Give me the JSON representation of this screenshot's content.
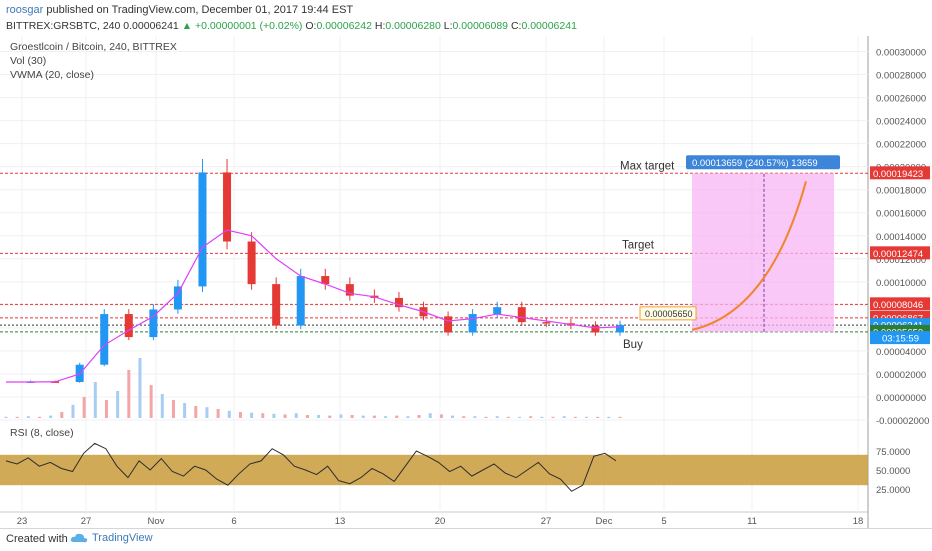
{
  "header": {
    "author": "roosgar",
    "published": "published on TradingView.com, December 01, 2017 19:44 EST",
    "symbol": "BITTREX:GRSBTC, 240",
    "last": "0.00006241",
    "change": "▲ +0.00000001 (+0.02%)",
    "o_label": "O:",
    "o": "0.00006242",
    "h_label": "H:",
    "h": "0.00006280",
    "l_label": "L:",
    "l": "0.00006089",
    "c_label": "C:",
    "c": "0.00006241"
  },
  "legend": {
    "title": "Groestlcoin / Bitcoin, 240, BITTREX",
    "vol": "Vol (30)",
    "vwma": "VWMA (20, close)",
    "rsi": "RSI (8, close)"
  },
  "footer": {
    "created": "Created with",
    "brand": "TradingView"
  },
  "colors": {
    "up": "#2196f3",
    "down": "#e53935",
    "vwma": "#e040fb",
    "rsi_band": "#c99b3a",
    "level": "#e53935",
    "target_box": "#f7b6f3",
    "curve": "#f0852d"
  },
  "chart_data": [
    {
      "type": "line",
      "name": "price",
      "y_axis_ticks": [
        "0.00030000",
        "0.00028000",
        "0.00026000",
        "0.00024000",
        "0.00022000",
        "0.00020000",
        "0.00018000",
        "0.00016000",
        "0.00014000",
        "0.00012000",
        "0.00010000",
        "0.00008000",
        "0.00006000",
        "0.00004000",
        "0.00002000",
        "0.00000000",
        "-0.00002000"
      ],
      "ylim": [
        -2e-05,
        0.00031
      ],
      "x_ticks": [
        "23",
        "27",
        "Nov",
        "6",
        "13",
        "20",
        "27",
        "Dec",
        "5",
        "11",
        "18"
      ],
      "x": [
        "Oct 21",
        "Oct 23",
        "Oct 25",
        "Oct 27",
        "Oct 28",
        "Oct 29",
        "Oct 30",
        "Oct 31",
        "Nov 1",
        "Nov 2",
        "Nov 3",
        "Nov 4",
        "Nov 5",
        "Nov 7",
        "Nov 9",
        "Nov 11",
        "Nov 13",
        "Nov 15",
        "Nov 17",
        "Nov 19",
        "Nov 21",
        "Nov 23",
        "Nov 25",
        "Nov 27",
        "Nov 29",
        "Dec 1"
      ],
      "close": [
        1.3e-05,
        1.35e-05,
        1.3e-05,
        2.8e-05,
        7.2e-05,
        5.2e-05,
        7.6e-05,
        9.6e-05,
        0.000195,
        0.000135,
        9.8e-05,
        6.2e-05,
        0.000105,
        9.8e-05,
        8.8e-05,
        8.6e-05,
        7.8e-05,
        7e-05,
        5.6e-05,
        7.2e-05,
        7.8e-05,
        6.5e-05,
        6.4e-05,
        6.2e-05,
        5.6e-05,
        6.24e-05
      ],
      "vwma": [
        1.3e-05,
        1.3e-05,
        1.32e-05,
        2e-05,
        4.5e-05,
        5.8e-05,
        7e-05,
        9e-05,
        0.00013,
        0.000145,
        0.00014,
        0.00012,
        0.000105,
        9.8e-05,
        9e-05,
        8.7e-05,
        8e-05,
        7.4e-05,
        6.6e-05,
        6.8e-05,
        7.2e-05,
        6.9e-05,
        6.6e-05,
        6.3e-05,
        6e-05,
        6.1e-05
      ],
      "levels": [
        {
          "label": "0.00019423",
          "value": 0.00019423,
          "color": "#e53935"
        },
        {
          "label": "0.00012474",
          "value": 0.00012474,
          "color": "#e53935"
        },
        {
          "label": "0.00008046",
          "value": 8.046e-05,
          "color": "#e53935"
        },
        {
          "label": "0.00006867",
          "value": 6.867e-05,
          "color": "#e53935"
        },
        {
          "label": "0.00006241",
          "value": 6.241e-05,
          "color": "#2196f3"
        },
        {
          "label": "0.00005650",
          "value": 5.65e-05,
          "color": "#2e7d32"
        }
      ],
      "countdown": "03:15:59",
      "annotations": {
        "max_target": "Max target",
        "target": "Target",
        "buy": "Buy",
        "buy_price": "0.00005650",
        "measure": "0.00013659 (240.57%) 13659"
      }
    },
    {
      "type": "line",
      "name": "RSI",
      "y_axis_ticks": [
        "75.0000",
        "50.0000",
        "25.0000"
      ],
      "ylim": [
        0,
        100
      ],
      "band": [
        30,
        70
      ],
      "values": [
        62,
        58,
        66,
        55,
        60,
        52,
        48,
        72,
        85,
        78,
        55,
        40,
        62,
        50,
        65,
        48,
        42,
        55,
        50,
        38,
        30,
        45,
        58,
        62,
        78,
        70,
        55,
        50,
        44,
        55,
        36,
        32,
        40,
        52,
        45,
        35,
        55,
        75,
        68,
        60,
        48,
        55,
        42,
        50,
        58,
        46,
        40,
        50,
        60,
        45,
        38,
        22,
        30,
        68,
        72,
        62
      ]
    },
    {
      "type": "bar",
      "name": "Vol",
      "values": [
        2,
        2,
        3,
        2,
        4,
        10,
        22,
        35,
        60,
        30,
        45,
        80,
        100,
        55,
        40,
        30,
        25,
        20,
        18,
        15,
        12,
        10,
        9,
        8,
        7,
        6,
        8,
        5,
        5,
        4,
        6,
        5,
        4,
        4,
        3,
        4,
        3,
        5,
        8,
        6,
        4,
        3,
        3,
        2,
        3,
        2,
        2,
        3,
        2,
        2,
        3,
        2,
        2,
        2,
        2,
        2
      ]
    }
  ]
}
